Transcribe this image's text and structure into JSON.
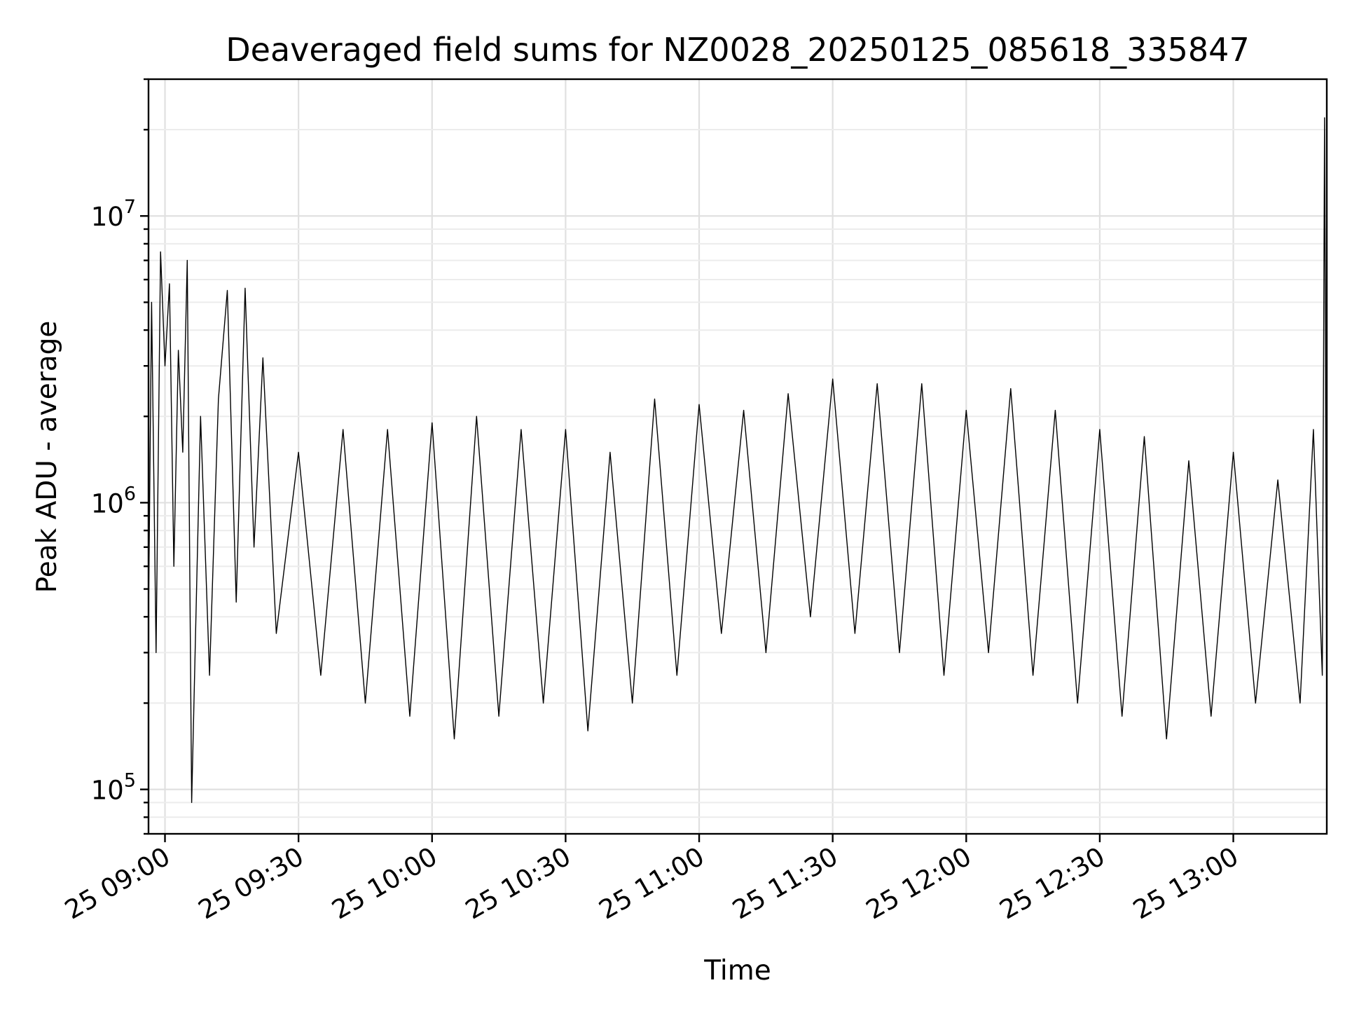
{
  "chart_data": {
    "type": "line",
    "title": "Deaveraged field sums for NZ0028_20250125_085618_335847",
    "xlabel": "Time",
    "ylabel": "Peak ADU - average",
    "yscale": "log",
    "xlim": [
      "2025-01-25T08:56:18",
      "2025-01-25T13:21:00"
    ],
    "ylim": [
      70000,
      30000000
    ],
    "x_ticks": [
      "25 09:00",
      "25 09:30",
      "25 10:00",
      "25 10:30",
      "25 11:00",
      "25 11:30",
      "25 12:00",
      "25 12:30",
      "25 13:00"
    ],
    "y_ticks": [
      {
        "base": "10",
        "exp": "5",
        "value": 100000
      },
      {
        "base": "10",
        "exp": "6",
        "value": 1000000
      },
      {
        "base": "10",
        "exp": "7",
        "value": 10000000
      }
    ],
    "grid": true,
    "series": [
      {
        "color": "#000000",
        "x": [
          "2025-01-25T08:56:18",
          "2025-01-25T08:57:00",
          "2025-01-25T08:58:00",
          "2025-01-25T08:59:00",
          "2025-01-25T09:00:00",
          "2025-01-25T09:01:00",
          "2025-01-25T09:02:00",
          "2025-01-25T09:03:00",
          "2025-01-25T09:04:00",
          "2025-01-25T09:05:00",
          "2025-01-25T09:06:00",
          "2025-01-25T09:08:00",
          "2025-01-25T09:10:00",
          "2025-01-25T09:12:00",
          "2025-01-25T09:14:00",
          "2025-01-25T09:16:00",
          "2025-01-25T09:18:00",
          "2025-01-25T09:20:00",
          "2025-01-25T09:22:00",
          "2025-01-25T09:25:00",
          "2025-01-25T09:30:00",
          "2025-01-25T09:35:00",
          "2025-01-25T09:40:00",
          "2025-01-25T09:45:00",
          "2025-01-25T09:50:00",
          "2025-01-25T09:55:00",
          "2025-01-25T10:00:00",
          "2025-01-25T10:05:00",
          "2025-01-25T10:10:00",
          "2025-01-25T10:15:00",
          "2025-01-25T10:20:00",
          "2025-01-25T10:25:00",
          "2025-01-25T10:30:00",
          "2025-01-25T10:35:00",
          "2025-01-25T10:40:00",
          "2025-01-25T10:45:00",
          "2025-01-25T10:50:00",
          "2025-01-25T10:55:00",
          "2025-01-25T11:00:00",
          "2025-01-25T11:05:00",
          "2025-01-25T11:10:00",
          "2025-01-25T11:15:00",
          "2025-01-25T11:20:00",
          "2025-01-25T11:25:00",
          "2025-01-25T11:30:00",
          "2025-01-25T11:35:00",
          "2025-01-25T11:40:00",
          "2025-01-25T11:45:00",
          "2025-01-25T11:50:00",
          "2025-01-25T11:55:00",
          "2025-01-25T12:00:00",
          "2025-01-25T12:05:00",
          "2025-01-25T12:10:00",
          "2025-01-25T12:15:00",
          "2025-01-25T12:20:00",
          "2025-01-25T12:25:00",
          "2025-01-25T12:30:00",
          "2025-01-25T12:35:00",
          "2025-01-25T12:40:00",
          "2025-01-25T12:45:00",
          "2025-01-25T12:50:00",
          "2025-01-25T12:55:00",
          "2025-01-25T13:00:00",
          "2025-01-25T13:05:00",
          "2025-01-25T13:10:00",
          "2025-01-25T13:15:00",
          "2025-01-25T13:18:00",
          "2025-01-25T13:20:00",
          "2025-01-25T13:20:30",
          "2025-01-25T13:21:00"
        ],
        "values": [
          400000,
          5000000,
          300000,
          7500000,
          3000000,
          5800000,
          600000,
          3400000,
          1500000,
          7000000,
          90000,
          2000000,
          250000,
          2300000,
          5500000,
          450000,
          5600000,
          700000,
          3200000,
          350000,
          1500000,
          250000,
          1800000,
          200000,
          1800000,
          180000,
          1900000,
          150000,
          2000000,
          180000,
          1800000,
          200000,
          1800000,
          160000,
          1500000,
          200000,
          2300000,
          250000,
          2200000,
          350000,
          2100000,
          300000,
          2400000,
          400000,
          2700000,
          350000,
          2600000,
          300000,
          2600000,
          250000,
          2100000,
          300000,
          2500000,
          250000,
          2100000,
          200000,
          1800000,
          180000,
          1700000,
          150000,
          1400000,
          180000,
          1500000,
          200000,
          1200000,
          200000,
          1800000,
          250000,
          22000000,
          180000
        ]
      }
    ]
  }
}
